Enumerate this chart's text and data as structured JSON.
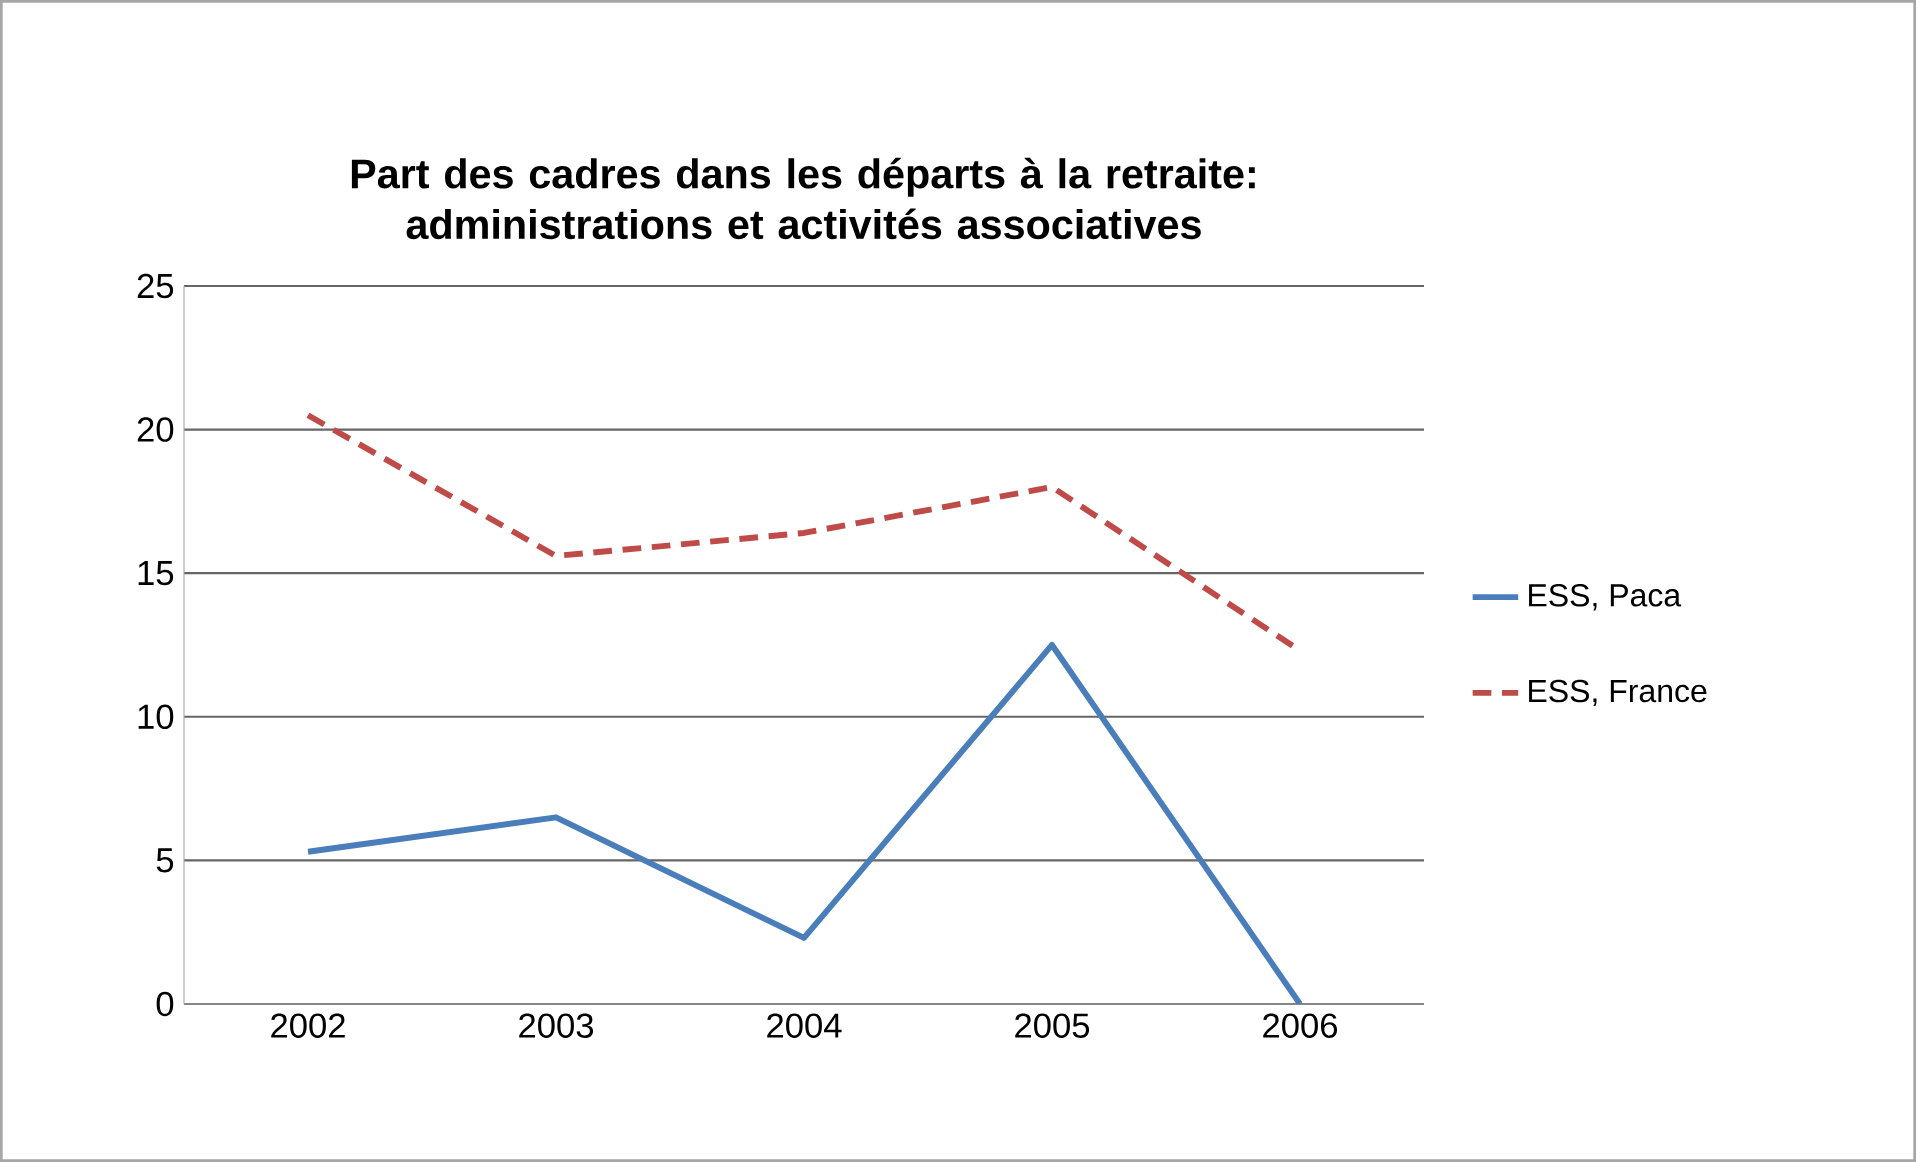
{
  "chart_data": {
    "type": "line",
    "title": "Part des cadres dans les départs à la retraite: administrations et activités associatives",
    "categories": [
      "2002",
      "2003",
      "2004",
      "2005",
      "2006"
    ],
    "series": [
      {
        "name": "ESS, Paca",
        "color": "#4a7ebb",
        "line_style": "solid",
        "values": [
          5.3,
          6.5,
          2.3,
          12.5,
          0
        ]
      },
      {
        "name": "ESS, France",
        "color": "#be4b48",
        "line_style": "dashed",
        "values": [
          20.5,
          15.6,
          16.4,
          18.0,
          12.3
        ]
      }
    ],
    "ylim": [
      0,
      25
    ],
    "yticks": [
      0,
      5,
      10,
      15,
      20,
      25
    ],
    "grid": "y",
    "legend": "right",
    "marker": "none"
  }
}
